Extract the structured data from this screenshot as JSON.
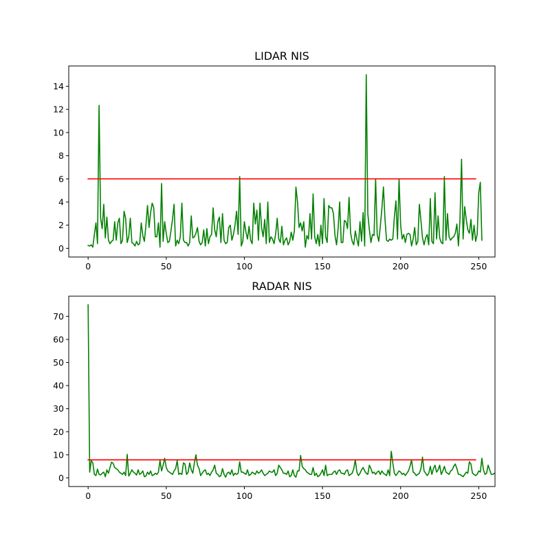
{
  "chart_data": [
    {
      "type": "line",
      "title": "LIDAR NIS",
      "xlabel": "",
      "ylabel": "",
      "xlim": [
        -12.4,
        260.4
      ],
      "ylim": [
        -0.75,
        15.75
      ],
      "xticks": [
        "0",
        "50",
        "100",
        "150",
        "200",
        "250"
      ],
      "xtick_values": [
        0,
        50,
        100,
        150,
        200,
        250
      ],
      "yticks": [
        "0",
        "2",
        "4",
        "6",
        "8",
        "10",
        "12",
        "14"
      ],
      "ytick_values": [
        0,
        2,
        4,
        6,
        8,
        10,
        12,
        14
      ],
      "grid": false,
      "series": [
        {
          "color": "#008000",
          "x_start": 0,
          "values": [
            0.25,
            0.2,
            0.3,
            0.1,
            1.2,
            2.2,
            0.4,
            12.35,
            2.6,
            1.7,
            3.8,
            0.9,
            2.7,
            0.7,
            0.4,
            0.6,
            0.7,
            2.3,
            0.7,
            2.2,
            2.6,
            0.4,
            0.7,
            3.2,
            2.6,
            0.5,
            1.0,
            2.6,
            0.5,
            0.4,
            0.2,
            0.6,
            0.3,
            0.4,
            2.2,
            1.1,
            0.6,
            2.0,
            3.7,
            1.8,
            3.1,
            3.9,
            3.5,
            1.0,
            1.0,
            2.2,
            0.1,
            5.6,
            0.6,
            2.3,
            1.3,
            0.5,
            0.6,
            1.5,
            2.5,
            3.8,
            0.2,
            0.7,
            0.4,
            1.0,
            3.9,
            0.7,
            0.5,
            0.5,
            0.2,
            0.5,
            2.8,
            0.9,
            1.0,
            1.3,
            1.8,
            0.6,
            0.3,
            0.5,
            1.6,
            0.2,
            1.7,
            0.4,
            1.0,
            1.2,
            3.5,
            1.6,
            1.0,
            2.3,
            2.7,
            0.5,
            3.0,
            0.7,
            0.4,
            0.5,
            1.8,
            2.0,
            0.7,
            1.2,
            2.0,
            3.2,
            1.2,
            6.2,
            0.2,
            0.6,
            2.3,
            1.4,
            0.8,
            1.9,
            0.7,
            0.4,
            3.9,
            2.1,
            3.3,
            0.7,
            3.9,
            1.8,
            1.0,
            2.5,
            0.4,
            4.0,
            0.5,
            1.0,
            0.8,
            0.4,
            1.2,
            2.6,
            0.8,
            0.5,
            1.9,
            0.3,
            0.7,
            0.9,
            0.3,
            0.6,
            1.4,
            0.7,
            1.5,
            5.3,
            4.0,
            1.8,
            2.2,
            1.5,
            2.3,
            0.1,
            1.1,
            0.8,
            3.0,
            0.8,
            4.7,
            1.0,
            0.4,
            1.2,
            0.2,
            2.0,
            0.4,
            4.3,
            1.0,
            0.5,
            3.7,
            3.5,
            3.5,
            3.0,
            1.1,
            0.3,
            1.7,
            4.0,
            0.5,
            0.5,
            2.4,
            2.3,
            1.7,
            4.4,
            1.3,
            0.6,
            0.3,
            1.5,
            0.8,
            0.2,
            2.3,
            0.6,
            3.1,
            0.2,
            15.0,
            3.0,
            1.6,
            0.5,
            1.2,
            1.1,
            6.0,
            1.2,
            0.6,
            1.9,
            3.4,
            5.3,
            2.5,
            0.7,
            0.6,
            0.8,
            0.7,
            0.8,
            2.7,
            4.1,
            0.8,
            6.0,
            2.0,
            0.8,
            1.2,
            0.5,
            1.2,
            1.3,
            1.2,
            0.2,
            0.8,
            1.8,
            0.3,
            0.6,
            3.8,
            2.4,
            0.9,
            0.3,
            0.9,
            1.2,
            0.3,
            4.3,
            0.6,
            0.4,
            4.8,
            0.8,
            2.8,
            0.9,
            0.5,
            0.4,
            6.2,
            0.7,
            3.0,
            1.0,
            0.7,
            0.9,
            1.0,
            1.3,
            2.1,
            0.2,
            2.5,
            7.7,
            0.8,
            3.6,
            2.5,
            1.6,
            1.3,
            2.5,
            0.7,
            2.0,
            0.6,
            1.2,
            4.8,
            5.7,
            0.7
          ]
        },
        {
          "color": "#ff0000",
          "x": [
            0,
            248
          ],
          "values": [
            6.0,
            6.0
          ]
        }
      ]
    },
    {
      "type": "line",
      "title": "RADAR NIS",
      "xlabel": "",
      "ylabel": "",
      "xlim": [
        -12.4,
        260.4
      ],
      "ylim": [
        -3.75,
        78.75
      ],
      "xticks": [
        "0",
        "50",
        "100",
        "150",
        "200",
        "250"
      ],
      "xtick_values": [
        0,
        50,
        100,
        150,
        200,
        250
      ],
      "yticks": [
        "0",
        "10",
        "20",
        "30",
        "40",
        "50",
        "60",
        "70"
      ],
      "ytick_values": [
        0,
        10,
        20,
        30,
        40,
        50,
        60,
        70
      ],
      "grid": false,
      "series": [
        {
          "color": "#008000",
          "x_start": 0,
          "values": [
            75.0,
            2.5,
            7.5,
            6.5,
            1.5,
            1.0,
            3.8,
            1.5,
            1.3,
            2.0,
            2.5,
            0.5,
            3.5,
            2.0,
            4.5,
            6.8,
            6.3,
            4.5,
            4.0,
            3.5,
            2.5,
            2.0,
            1.5,
            2.5,
            1.0,
            10.2,
            0.8,
            2.0,
            3.5,
            2.5,
            2.0,
            1.2,
            3.5,
            1.5,
            2.0,
            3.0,
            0.5,
            0.8,
            2.5,
            1.5,
            3.0,
            1.0,
            1.3,
            2.0,
            1.5,
            2.5,
            7.6,
            3.0,
            5.5,
            8.5,
            4.5,
            3.0,
            2.5,
            2.0,
            1.5,
            3.0,
            4.0,
            7.5,
            1.5,
            2.0,
            1.5,
            6.5,
            6.0,
            1.5,
            2.5,
            6.5,
            3.5,
            2.0,
            6.5,
            10.0,
            5.5,
            4.0,
            1.0,
            2.0,
            3.0,
            3.5,
            1.5,
            2.0,
            1.0,
            2.5,
            3.5,
            5.5,
            2.0,
            1.5,
            0.5,
            1.0,
            4.0,
            1.5,
            0.3,
            2.0,
            2.5,
            1.5,
            3.5,
            1.0,
            2.0,
            1.5,
            2.0,
            7.0,
            2.5,
            2.5,
            2.0,
            1.5,
            3.5,
            1.0,
            1.5,
            2.5,
            2.0,
            1.5,
            3.0,
            2.0,
            2.5,
            3.5,
            2.0,
            1.0,
            1.5,
            2.0,
            3.0,
            2.5,
            2.5,
            3.5,
            1.0,
            2.0,
            5.5,
            4.5,
            3.5,
            2.0,
            2.0,
            1.5,
            3.0,
            0.5,
            1.0,
            3.5,
            1.0,
            0.3,
            3.0,
            3.0,
            9.7,
            5.0,
            4.0,
            3.5,
            2.5,
            2.0,
            1.5,
            1.5,
            4.5,
            1.0,
            2.0,
            0.5,
            1.0,
            2.0,
            3.5,
            1.0,
            5.5,
            1.0,
            1.5,
            1.5,
            1.5,
            2.5,
            3.0,
            1.5,
            3.0,
            3.5,
            2.0,
            2.0,
            1.5,
            3.0,
            3.5,
            1.0,
            1.5,
            2.0,
            4.0,
            7.8,
            2.5,
            1.0,
            2.0,
            3.5,
            4.5,
            3.0,
            2.0,
            1.5,
            5.5,
            4.0,
            2.0,
            2.5,
            1.5,
            2.5,
            3.0,
            1.5,
            3.0,
            2.0,
            1.5,
            1.0,
            3.5,
            1.0,
            11.5,
            6.5,
            2.0,
            1.0,
            2.0,
            3.0,
            2.5,
            1.5,
            2.0,
            1.0,
            2.0,
            3.0,
            5.0,
            7.8,
            2.5,
            2.0,
            1.0,
            1.5,
            2.0,
            4.0,
            9.0,
            3.0,
            2.0,
            1.0,
            2.0,
            5.0,
            1.5,
            4.0,
            5.5,
            2.5,
            3.5,
            5.5,
            1.5,
            3.0,
            5.0,
            2.5,
            2.0,
            1.5,
            3.0,
            3.5,
            5.0,
            6.0,
            4.0,
            1.5,
            1.5,
            1.0,
            0.5,
            1.5,
            2.5,
            2.0,
            7.0,
            6.0,
            2.0,
            1.5,
            1.0,
            1.5,
            3.0,
            2.5,
            8.5,
            3.5,
            1.5,
            2.0,
            5.5,
            3.5,
            1.5,
            1.5,
            2.0
          ]
        },
        {
          "color": "#ff0000",
          "x": [
            0,
            248
          ],
          "values": [
            7.8,
            7.8
          ]
        }
      ]
    }
  ]
}
